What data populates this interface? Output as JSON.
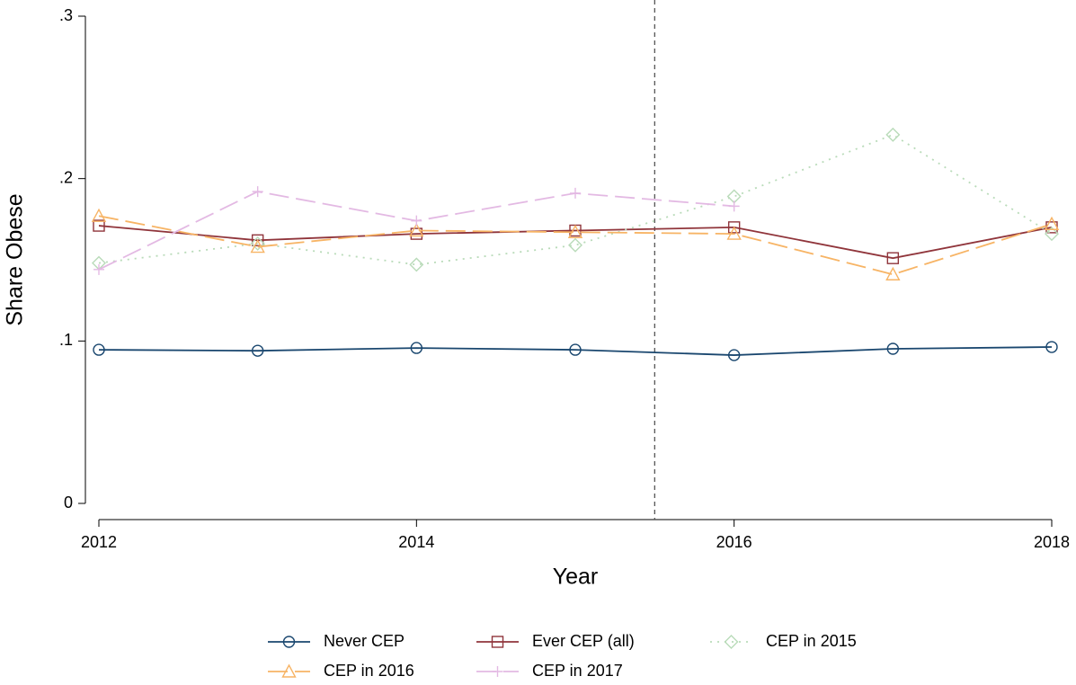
{
  "chart_data": {
    "type": "line",
    "x": [
      2012,
      2013,
      2014,
      2015,
      2016,
      2017,
      2018
    ],
    "xlabel": "Year",
    "ylabel": "Share Obese",
    "xlim": [
      2012,
      2018
    ],
    "xticks": [
      2012,
      2014,
      2016,
      2018
    ],
    "ylim": [
      0,
      0.3
    ],
    "yticks": [
      0,
      {
        "value": 0.1,
        "label": ".1"
      },
      {
        "value": 0.2,
        "label": ".2"
      },
      {
        "value": 0.3,
        "label": ".3"
      }
    ],
    "vline": 2015.5,
    "grid": false,
    "legend": "bottom",
    "series": [
      {
        "name": "Never CEP",
        "color": "#1a476f",
        "marker": "circle",
        "dash": "solid",
        "values": [
          0.0946,
          0.094,
          0.0957,
          0.0946,
          0.0913,
          0.0952,
          0.0963
        ]
      },
      {
        "name": "Ever CEP (all)",
        "color": "#90353b",
        "marker": "square",
        "dash": "solid",
        "values": [
          0.171,
          0.162,
          0.166,
          0.168,
          0.17,
          0.151,
          0.17
        ]
      },
      {
        "name": "CEP in 2015",
        "color": "#b9dbb9",
        "marker": "diamond",
        "dash": "dotted",
        "values": [
          0.148,
          0.16,
          0.147,
          0.159,
          0.189,
          0.227,
          0.166
        ]
      },
      {
        "name": "CEP in 2016",
        "color": "#f7b465",
        "marker": "triangle",
        "dash": "longdash",
        "values": [
          0.177,
          0.158,
          0.168,
          0.167,
          0.166,
          0.141,
          0.172
        ]
      },
      {
        "name": "CEP in 2017",
        "color": "#e3b9e3",
        "marker": "plus",
        "dash": "longdash",
        "values": [
          0.144,
          0.192,
          0.174,
          0.191,
          0.183,
          null,
          null
        ]
      }
    ]
  }
}
